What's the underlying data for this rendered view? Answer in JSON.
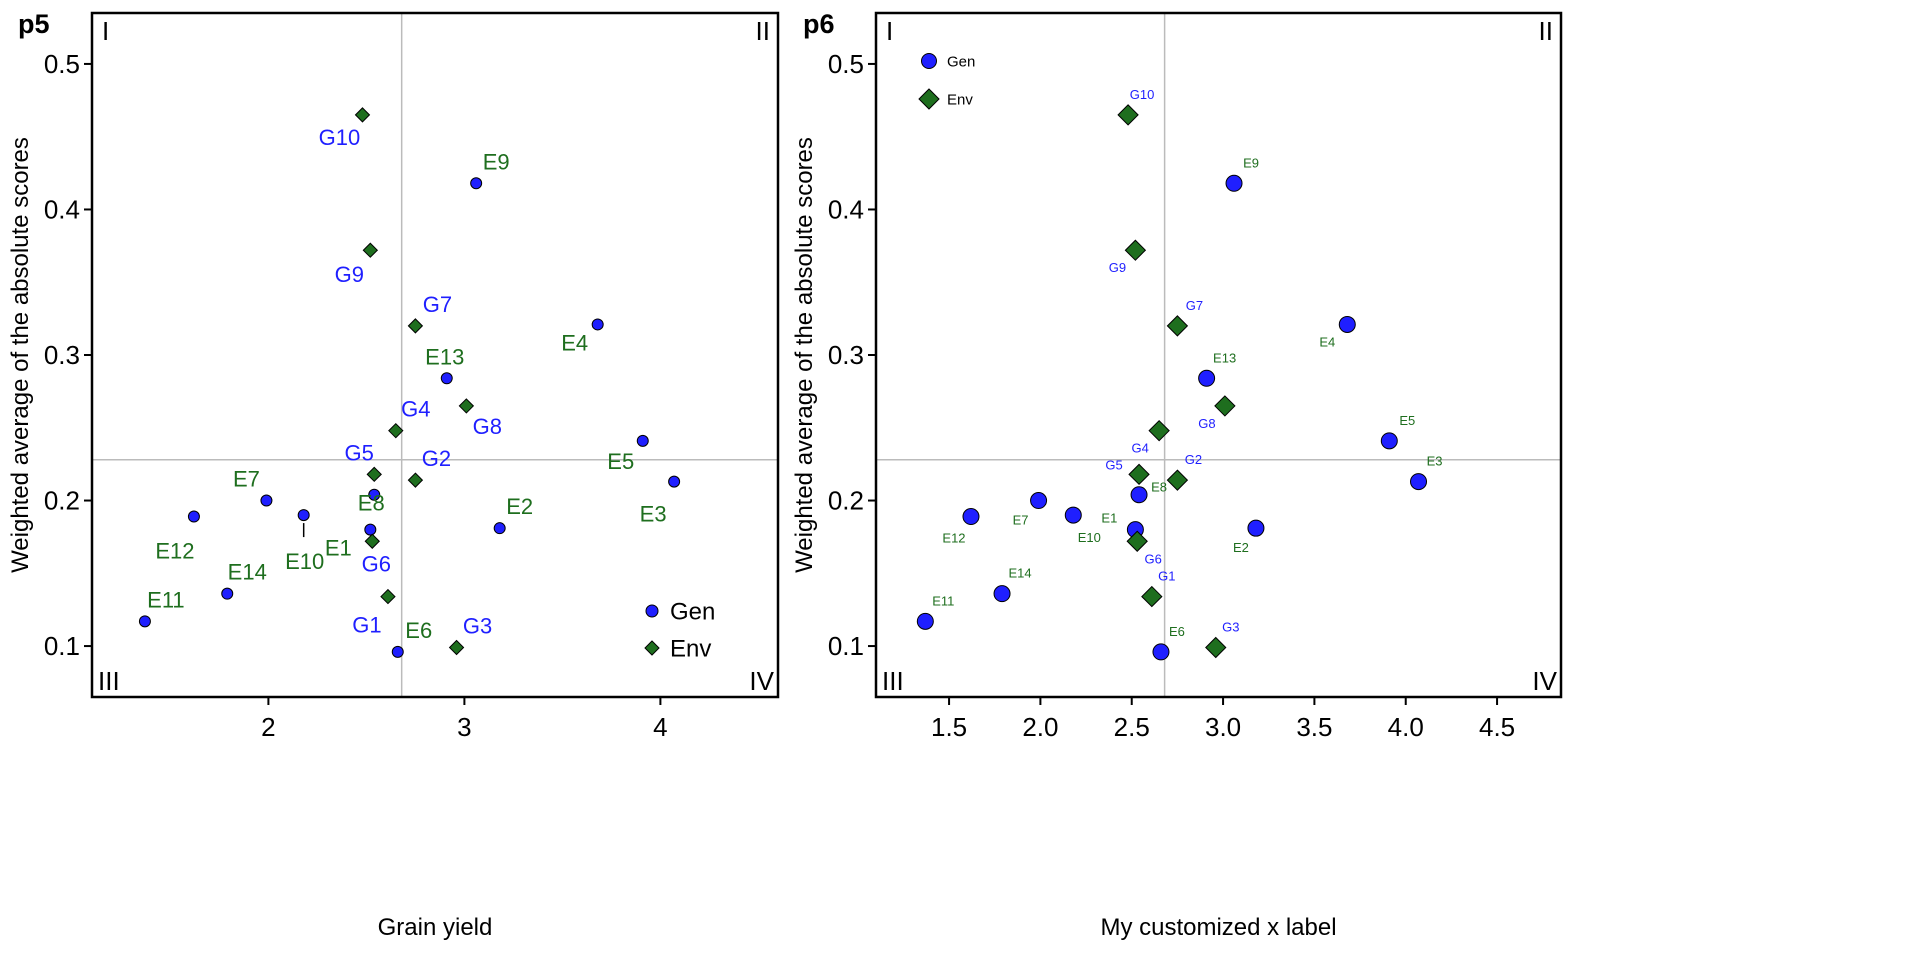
{
  "colors": {
    "gen": "#1f1fff",
    "env": "#1e6e1e",
    "ref_line": "#bbbbbb",
    "frame": "#000000"
  },
  "chart_data": [
    {
      "type": "scatter",
      "panel_label": "p5",
      "xlabel": "Grain yield",
      "ylabel": "Weighted average of the absolute scores",
      "xlim": [
        1.1,
        4.6
      ],
      "ylim": [
        0.065,
        0.535
      ],
      "x_ticks": [
        2,
        3,
        4
      ],
      "x_tick_labels": [
        "2",
        "3",
        "4"
      ],
      "y_ticks": [
        0.1,
        0.2,
        0.3,
        0.4,
        0.5
      ],
      "y_tick_labels": [
        "0.1",
        "0.2",
        "0.3",
        "0.4",
        "0.5"
      ],
      "ref_x": 2.68,
      "ref_y": 0.228,
      "quadrants": [
        "I",
        "II",
        "III",
        "IV"
      ],
      "legend": {
        "entries": [
          "Gen",
          "Env"
        ],
        "position": "bottom-right"
      },
      "series": [
        {
          "name": "Gen",
          "marker": "circle",
          "points": [
            {
              "label": "E1",
              "x": 2.52,
              "y": 0.18
            },
            {
              "label": "E2",
              "x": 3.18,
              "y": 0.181
            },
            {
              "label": "E3",
              "x": 4.07,
              "y": 0.213
            },
            {
              "label": "E4",
              "x": 3.68,
              "y": 0.321
            },
            {
              "label": "E5",
              "x": 3.91,
              "y": 0.241
            },
            {
              "label": "E6",
              "x": 2.66,
              "y": 0.096
            },
            {
              "label": "E7",
              "x": 1.99,
              "y": 0.2
            },
            {
              "label": "E8",
              "x": 2.54,
              "y": 0.204
            },
            {
              "label": "E9",
              "x": 3.06,
              "y": 0.418
            },
            {
              "label": "E10",
              "x": 2.18,
              "y": 0.19
            },
            {
              "label": "E11",
              "x": 1.37,
              "y": 0.117
            },
            {
              "label": "E12",
              "x": 1.62,
              "y": 0.189
            },
            {
              "label": "E13",
              "x": 2.91,
              "y": 0.284
            },
            {
              "label": "E14",
              "x": 1.79,
              "y": 0.136
            }
          ]
        },
        {
          "name": "Env",
          "marker": "diamond",
          "points": [
            {
              "label": "G1",
              "x": 2.61,
              "y": 0.134
            },
            {
              "label": "G2",
              "x": 2.75,
              "y": 0.214
            },
            {
              "label": "G3",
              "x": 2.96,
              "y": 0.099
            },
            {
              "label": "G4",
              "x": 2.65,
              "y": 0.248
            },
            {
              "label": "G5",
              "x": 2.54,
              "y": 0.218
            },
            {
              "label": "G6",
              "x": 2.53,
              "y": 0.172
            },
            {
              "label": "G7",
              "x": 2.75,
              "y": 0.32
            },
            {
              "label": "G8",
              "x": 3.01,
              "y": 0.265
            },
            {
              "label": "G9",
              "x": 2.52,
              "y": 0.372
            },
            {
              "label": "G10",
              "x": 2.48,
              "y": 0.465
            }
          ]
        }
      ]
    },
    {
      "type": "scatter",
      "panel_label": "p6",
      "xlabel": "My customized x label",
      "ylabel": "Weighted average of the absolute scores",
      "xlim": [
        1.1,
        4.85
      ],
      "ylim": [
        0.065,
        0.535
      ],
      "x_ticks": [
        1.5,
        2.0,
        2.5,
        3.0,
        3.5,
        4.0,
        4.5
      ],
      "x_tick_labels": [
        "1.5",
        "2.0",
        "2.5",
        "3.0",
        "3.5",
        "4.0",
        "4.5"
      ],
      "y_ticks": [
        0.1,
        0.2,
        0.3,
        0.4,
        0.5
      ],
      "y_tick_labels": [
        "0.1",
        "0.2",
        "0.3",
        "0.4",
        "0.5"
      ],
      "ref_x": 2.68,
      "ref_y": 0.228,
      "quadrants": [
        "I",
        "II",
        "III",
        "IV"
      ],
      "legend": {
        "entries": [
          "Gen",
          "Env"
        ],
        "position": "top-left"
      },
      "series": [
        {
          "name": "Gen",
          "marker": "circle",
          "points": [
            {
              "label": "E1",
              "x": 2.52,
              "y": 0.18
            },
            {
              "label": "E2",
              "x": 3.18,
              "y": 0.181
            },
            {
              "label": "E3",
              "x": 4.07,
              "y": 0.213
            },
            {
              "label": "E4",
              "x": 3.68,
              "y": 0.321
            },
            {
              "label": "E5",
              "x": 3.91,
              "y": 0.241
            },
            {
              "label": "E6",
              "x": 2.66,
              "y": 0.096
            },
            {
              "label": "E7",
              "x": 1.99,
              "y": 0.2
            },
            {
              "label": "E8",
              "x": 2.54,
              "y": 0.204
            },
            {
              "label": "E9",
              "x": 3.06,
              "y": 0.418
            },
            {
              "label": "E10",
              "x": 2.18,
              "y": 0.19
            },
            {
              "label": "E11",
              "x": 1.37,
              "y": 0.117
            },
            {
              "label": "E12",
              "x": 1.62,
              "y": 0.189
            },
            {
              "label": "E13",
              "x": 2.91,
              "y": 0.284
            },
            {
              "label": "E14",
              "x": 1.79,
              "y": 0.136
            }
          ]
        },
        {
          "name": "Env",
          "marker": "diamond",
          "points": [
            {
              "label": "G1",
              "x": 2.61,
              "y": 0.134
            },
            {
              "label": "G2",
              "x": 2.75,
              "y": 0.214
            },
            {
              "label": "G3",
              "x": 2.96,
              "y": 0.099
            },
            {
              "label": "G4",
              "x": 2.65,
              "y": 0.248
            },
            {
              "label": "G5",
              "x": 2.54,
              "y": 0.218
            },
            {
              "label": "G6",
              "x": 2.53,
              "y": 0.172
            },
            {
              "label": "G7",
              "x": 2.75,
              "y": 0.32
            },
            {
              "label": "G8",
              "x": 3.01,
              "y": 0.265
            },
            {
              "label": "G9",
              "x": 2.52,
              "y": 0.372
            },
            {
              "label": "G10",
              "x": 2.48,
              "y": 0.465
            }
          ]
        }
      ]
    }
  ]
}
